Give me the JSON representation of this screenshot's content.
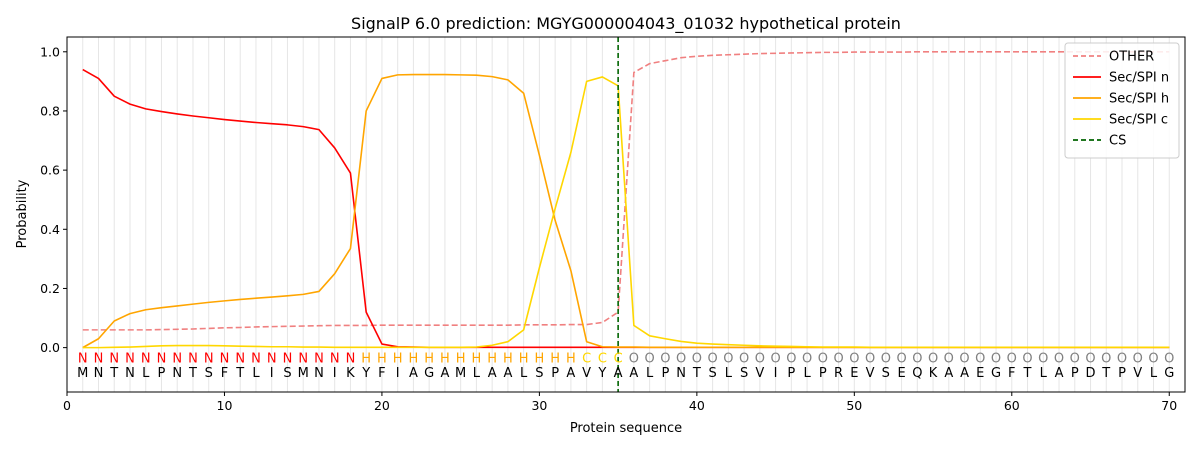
{
  "chart_data": {
    "type": "line",
    "title": "SignalP 6.0 prediction: MGYG000004043_01032 hypothetical protein",
    "xlabel": "Protein sequence",
    "ylabel": "Probability",
    "xlim": [
      0,
      71
    ],
    "ylim": [
      -0.15,
      1.05
    ],
    "xticks": [
      "0",
      "10",
      "20",
      "30",
      "40",
      "50",
      "60",
      "70"
    ],
    "yticks": [
      "0.0",
      "0.2",
      "0.4",
      "0.6",
      "0.8",
      "1.0"
    ],
    "legend_position": "top-right",
    "cs_position": 35,
    "sequence": [
      "M",
      "N",
      "T",
      "N",
      "L",
      "P",
      "N",
      "T",
      "S",
      "F",
      "T",
      "L",
      "I",
      "S",
      "M",
      "N",
      "I",
      "K",
      "Y",
      "F",
      "I",
      "A",
      "G",
      "A",
      "M",
      "L",
      "A",
      "A",
      "L",
      "S",
      "P",
      "A",
      "V",
      "Y",
      "A",
      "A",
      "L",
      "P",
      "N",
      "T",
      "S",
      "L",
      "S",
      "V",
      "I",
      "P",
      "L",
      "P",
      "R",
      "E",
      "V",
      "S",
      "E",
      "Q",
      "K",
      "A",
      "A",
      "E",
      "G",
      "F",
      "T",
      "L",
      "A",
      "P",
      "D",
      "T",
      "P",
      "V",
      "L",
      "G"
    ],
    "labels": [
      "N",
      "N",
      "N",
      "N",
      "N",
      "N",
      "N",
      "N",
      "N",
      "N",
      "N",
      "N",
      "N",
      "N",
      "N",
      "N",
      "N",
      "N",
      "H",
      "H",
      "H",
      "H",
      "H",
      "H",
      "H",
      "H",
      "H",
      "H",
      "H",
      "H",
      "H",
      "H",
      "C",
      "C",
      "C",
      "O",
      "O",
      "O",
      "O",
      "O",
      "O",
      "O",
      "O",
      "O",
      "O",
      "O",
      "O",
      "O",
      "O",
      "O",
      "O",
      "O",
      "O",
      "O",
      "O",
      "O",
      "O",
      "O",
      "O",
      "O",
      "O",
      "O",
      "O",
      "O",
      "O",
      "O",
      "O",
      "O",
      "O",
      "O"
    ],
    "label_colors": {
      "N": "#ff0000",
      "H": "#ffa500",
      "C": "#ffd700",
      "O": "#808080"
    },
    "series": [
      {
        "name": "OTHER",
        "color": "#f08080",
        "dashed": true,
        "values": [
          0.06,
          0.06,
          0.06,
          0.06,
          0.06,
          0.061,
          0.062,
          0.063,
          0.065,
          0.067,
          0.068,
          0.07,
          0.071,
          0.072,
          0.073,
          0.074,
          0.075,
          0.075,
          0.075,
          0.076,
          0.076,
          0.076,
          0.076,
          0.076,
          0.076,
          0.076,
          0.076,
          0.076,
          0.077,
          0.077,
          0.077,
          0.078,
          0.078,
          0.085,
          0.12,
          0.93,
          0.96,
          0.97,
          0.98,
          0.985,
          0.988,
          0.99,
          0.992,
          0.994,
          0.995,
          0.996,
          0.997,
          0.998,
          0.998,
          0.999,
          0.999,
          0.999,
          0.999,
          1.0,
          1.0,
          1.0,
          1.0,
          1.0,
          1.0,
          1.0,
          1.0,
          1.0,
          1.0,
          1.0,
          1.0,
          1.0,
          1.0,
          1.0,
          1.0,
          1.0
        ]
      },
      {
        "name": "Sec/SPI n",
        "color": "#ff0000",
        "dashed": false,
        "values": [
          0.94,
          0.91,
          0.85,
          0.823,
          0.807,
          0.798,
          0.79,
          0.783,
          0.777,
          0.771,
          0.766,
          0.761,
          0.757,
          0.753,
          0.747,
          0.737,
          0.675,
          0.59,
          0.12,
          0.012,
          0.003,
          0.002,
          0.001,
          0.001,
          0.001,
          0.001,
          0.001,
          0.001,
          0.001,
          0.001,
          0.001,
          0.001,
          0.001,
          0.001,
          0.001,
          0.001,
          0.001,
          0.001,
          0.001,
          0.001,
          0.001,
          0.001,
          0.001,
          0.001,
          0.001,
          0.001,
          0.001,
          0.001,
          0.001,
          0.001,
          0.001,
          0.001,
          0.001,
          0.001,
          0.001,
          0.001,
          0.001,
          0.001,
          0.001,
          0.001,
          0.001,
          0.001,
          0.001,
          0.001,
          0.001,
          0.001,
          0.001,
          0.001,
          0.001,
          0.001
        ]
      },
      {
        "name": "Sec/SPI h",
        "color": "#ffa500",
        "dashed": false,
        "values": [
          0.0,
          0.03,
          0.09,
          0.115,
          0.128,
          0.135,
          0.141,
          0.147,
          0.153,
          0.158,
          0.163,
          0.167,
          0.171,
          0.175,
          0.18,
          0.19,
          0.25,
          0.335,
          0.8,
          0.91,
          0.922,
          0.923,
          0.923,
          0.923,
          0.922,
          0.921,
          0.916,
          0.905,
          0.86,
          0.65,
          0.43,
          0.26,
          0.02,
          0.003,
          0.002,
          0.002,
          0.001,
          0.001,
          0.001,
          0.001,
          0.001,
          0.001,
          0.001,
          0.001,
          0.001,
          0.001,
          0.001,
          0.001,
          0.001,
          0.001,
          0.001,
          0.001,
          0.001,
          0.001,
          0.001,
          0.001,
          0.001,
          0.001,
          0.001,
          0.001,
          0.001,
          0.001,
          0.001,
          0.001,
          0.001,
          0.001,
          0.001,
          0.001,
          0.001,
          0.001
        ]
      },
      {
        "name": "Sec/SPI c",
        "color": "#ffd700",
        "dashed": false,
        "values": [
          0.0,
          0.0,
          0.001,
          0.002,
          0.004,
          0.006,
          0.007,
          0.007,
          0.007,
          0.006,
          0.005,
          0.004,
          0.003,
          0.003,
          0.002,
          0.002,
          0.001,
          0.001,
          0.001,
          0.001,
          0.001,
          0.001,
          0.001,
          0.001,
          0.001,
          0.002,
          0.008,
          0.02,
          0.06,
          0.27,
          0.47,
          0.66,
          0.9,
          0.915,
          0.885,
          0.075,
          0.04,
          0.03,
          0.021,
          0.015,
          0.012,
          0.01,
          0.008,
          0.006,
          0.005,
          0.004,
          0.003,
          0.002,
          0.002,
          0.002,
          0.001,
          0.001,
          0.001,
          0.001,
          0.001,
          0.001,
          0.001,
          0.001,
          0.001,
          0.001,
          0.001,
          0.001,
          0.001,
          0.001,
          0.001,
          0.001,
          0.001,
          0.001,
          0.001,
          0.001
        ]
      }
    ],
    "cs_series": {
      "name": "CS",
      "color": "#006400",
      "dashed": true
    }
  }
}
